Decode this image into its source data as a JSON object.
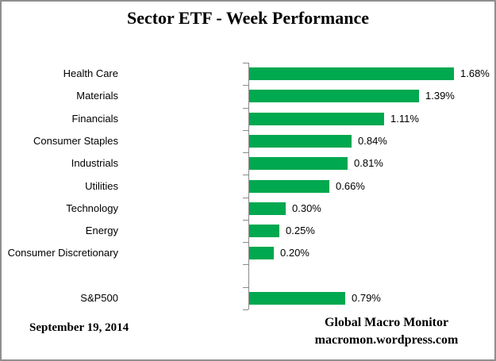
{
  "window": {
    "background": "#ffffff",
    "border_color": "#8f8f8f"
  },
  "header": {
    "title": "Sector ETF - Week Performance"
  },
  "chart_data": {
    "type": "bar",
    "orientation": "horizontal",
    "title": "Sector ETF - Week Performance",
    "xlabel": "",
    "ylabel": "",
    "xlim": [
      0,
      2.05
    ],
    "grid": false,
    "legend": false,
    "bar_color": "#00A84F",
    "axis_color": "#8a8a8a",
    "label_color": "#000000",
    "categories": [
      "Health Care",
      "Materials",
      "Financials",
      "Consumer Staples",
      "Industrials",
      "Utilities",
      "Technology",
      "Energy",
      "Consumer Discretionary",
      "",
      "S&P500"
    ],
    "values": [
      1.68,
      1.39,
      1.11,
      0.84,
      0.81,
      0.66,
      0.3,
      0.25,
      0.2,
      null,
      0.79
    ],
    "data_labels": [
      "1.68%",
      "1.39%",
      "1.11%",
      "0.84%",
      "0.81%",
      "0.66%",
      "0.30%",
      "0.25%",
      "0.20%",
      "",
      "0.79%"
    ]
  },
  "footer": {
    "date": "September 19, 2014",
    "source_line1": "Global Macro Monitor",
    "source_line2": "macromon.wordpress.com"
  }
}
